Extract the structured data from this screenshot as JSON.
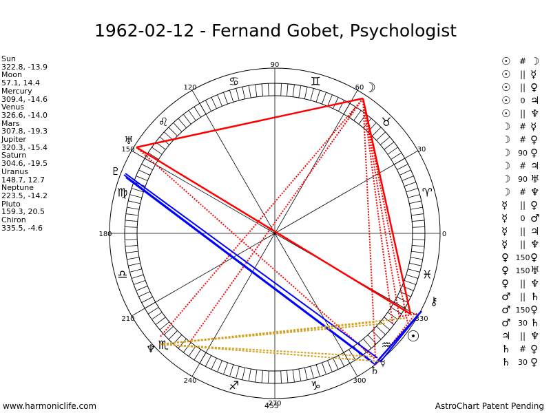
{
  "title": "1962-02-12 - Fernand Gobet, Psychologist",
  "planets": [
    {
      "name": "Sun",
      "pos": "322.8, -13.9",
      "glyph": "☉"
    },
    {
      "name": "Moon",
      "pos": "57.1, 14.4",
      "glyph": "☽"
    },
    {
      "name": "Mercury",
      "pos": "309.4, -14.6",
      "glyph": "☿"
    },
    {
      "name": "Venus",
      "pos": "326.6, -14.0",
      "glyph": "♀"
    },
    {
      "name": "Mars",
      "pos": "307.8, -19.3",
      "glyph": "♂"
    },
    {
      "name": "Jupiter",
      "pos": "320.3, -15.4",
      "glyph": "♃"
    },
    {
      "name": "Saturn",
      "pos": "304.6, -19.5",
      "glyph": "♄"
    },
    {
      "name": "Uranus",
      "pos": "148.7, 12.7",
      "glyph": "♅"
    },
    {
      "name": "Neptune",
      "pos": "223.5, -14.2",
      "glyph": "♆"
    },
    {
      "name": "Pluto",
      "pos": "159.3, 20.5",
      "glyph": "♇"
    },
    {
      "name": "Chiron",
      "pos": "335.5, -4.6",
      "glyph": "⚷"
    }
  ],
  "aspects": [
    {
      "a": "☉",
      "aspect": "#",
      "b": "☽"
    },
    {
      "a": "☉",
      "aspect": "||",
      "b": "☿"
    },
    {
      "a": "☉",
      "aspect": "||",
      "b": "♀"
    },
    {
      "a": "☉",
      "aspect": "0",
      "b": "♃"
    },
    {
      "a": "☉",
      "aspect": "||",
      "b": "♆"
    },
    {
      "a": "☽",
      "aspect": "#",
      "b": "☿"
    },
    {
      "a": "☽",
      "aspect": "#",
      "b": "♀"
    },
    {
      "a": "☽",
      "aspect": "90",
      "b": "♀"
    },
    {
      "a": "☽",
      "aspect": "#",
      "b": "♃"
    },
    {
      "a": "☽",
      "aspect": "90",
      "b": "♅"
    },
    {
      "a": "☽",
      "aspect": "#",
      "b": "♆"
    },
    {
      "a": "☿",
      "aspect": "||",
      "b": "♀"
    },
    {
      "a": "☿",
      "aspect": "0",
      "b": "♂"
    },
    {
      "a": "☿",
      "aspect": "||",
      "b": "♃"
    },
    {
      "a": "☿",
      "aspect": "||",
      "b": "♆"
    },
    {
      "a": "♀",
      "aspect": "150",
      "b": "♀"
    },
    {
      "a": "♀",
      "aspect": "150",
      "b": "♅"
    },
    {
      "a": "♀",
      "aspect": "||",
      "b": "♆"
    },
    {
      "a": "♂",
      "aspect": "||",
      "b": "♄"
    },
    {
      "a": "♂",
      "aspect": "150",
      "b": "♀"
    },
    {
      "a": "♂",
      "aspect": "30",
      "b": "♄"
    },
    {
      "a": "♃",
      "aspect": "||",
      "b": "♆"
    },
    {
      "a": "♄",
      "aspect": "#",
      "b": "♀"
    },
    {
      "a": "♄",
      "aspect": "30",
      "b": "♀"
    }
  ],
  "degree_labels": [
    "0",
    "30",
    "60",
    "90",
    "120",
    "150",
    "180",
    "210",
    "240",
    "270",
    "300",
    "330"
  ],
  "zodiac": [
    "♈",
    "♉",
    "♊",
    "♋",
    "♌",
    "♍",
    "♎",
    "♏",
    "♐",
    "♑",
    "♒",
    "♓"
  ],
  "wheel_glyphs": {
    "moon": "☽",
    "uranus": "♅",
    "pluto": "♇",
    "neptune": "♆",
    "chiron": "⚷",
    "sun": "☉",
    "mercury": "☿",
    "saturn": "♄"
  },
  "footer": {
    "left": "www.harmoniclife.com",
    "right": "AstroChart Patent Pending",
    "mid": "455"
  },
  "colors": {
    "red": "#ff0000",
    "blue": "#0000ff",
    "gold": "#d4a020"
  }
}
